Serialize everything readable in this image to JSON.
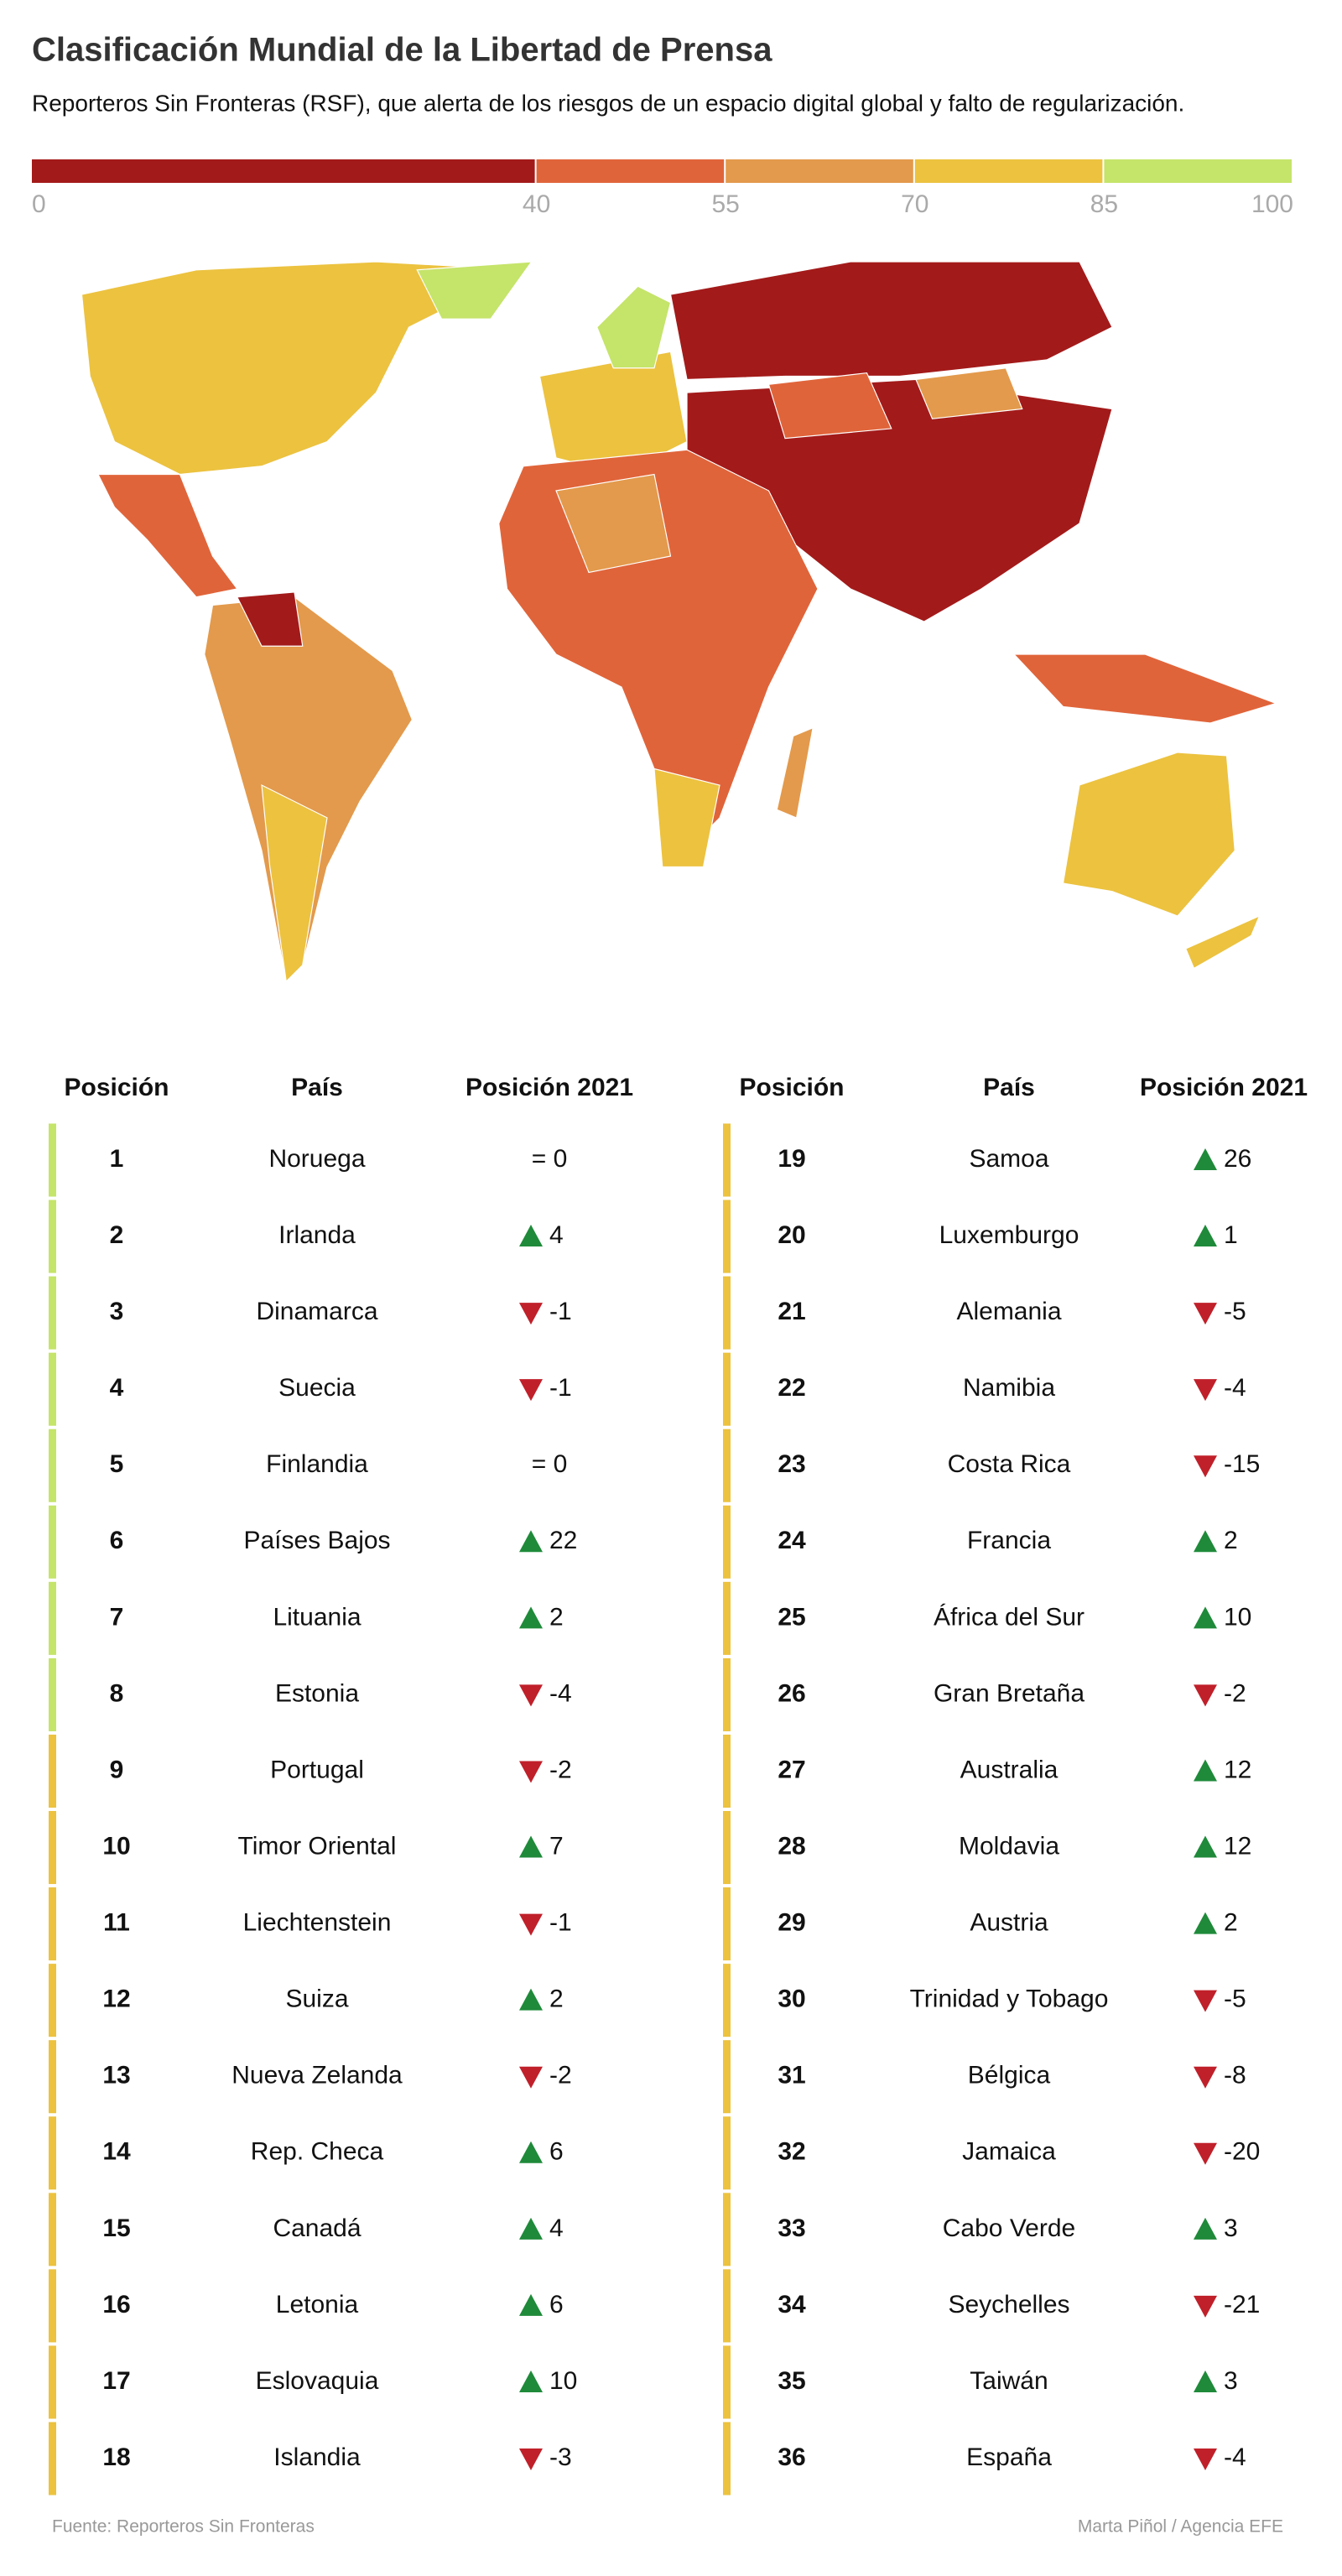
{
  "header": {
    "title": "Clasificación Mundial de la Libertad de Prensa",
    "subtitle": "Reporteros Sin Fronteras (RSF), que alerta de los riesgos de un espacio digital global y falto de regularización."
  },
  "legend": {
    "ticks": [
      0,
      40,
      55,
      70,
      85,
      100
    ],
    "colors": [
      "#a31a1a",
      "#e0643a",
      "#e39a4c",
      "#ecc23f",
      "#c5e46a"
    ]
  },
  "table": {
    "headers": [
      "Posición",
      "País",
      "Posición 2021"
    ],
    "up_color": "#1f8a3a",
    "down_color": "#c0202a",
    "rows": [
      {
        "position": 1,
        "country": "Noruega",
        "change": "= 0",
        "trend": "same",
        "color": "#c5e46a"
      },
      {
        "position": 2,
        "country": "Irlanda",
        "change": 4,
        "trend": "up",
        "color": "#c5e46a"
      },
      {
        "position": 3,
        "country": "Dinamarca",
        "change": -1,
        "trend": "down",
        "color": "#c5e46a"
      },
      {
        "position": 4,
        "country": "Suecia",
        "change": -1,
        "trend": "down",
        "color": "#c5e46a"
      },
      {
        "position": 5,
        "country": "Finlandia",
        "change": "= 0",
        "trend": "same",
        "color": "#c5e46a"
      },
      {
        "position": 6,
        "country": "Países Bajos",
        "change": 22,
        "trend": "up",
        "color": "#c5e46a"
      },
      {
        "position": 7,
        "country": "Lituania",
        "change": 2,
        "trend": "up",
        "color": "#c5e46a"
      },
      {
        "position": 8,
        "country": "Estonia",
        "change": -4,
        "trend": "down",
        "color": "#c5e46a"
      },
      {
        "position": 9,
        "country": "Portugal",
        "change": -2,
        "trend": "down",
        "color": "#ecc23f"
      },
      {
        "position": 10,
        "country": "Timor Oriental",
        "change": 7,
        "trend": "up",
        "color": "#ecc23f"
      },
      {
        "position": 11,
        "country": "Liechtenstein",
        "change": -1,
        "trend": "down",
        "color": "#ecc23f"
      },
      {
        "position": 12,
        "country": "Suiza",
        "change": 2,
        "trend": "up",
        "color": "#ecc23f"
      },
      {
        "position": 13,
        "country": "Nueva Zelanda",
        "change": -2,
        "trend": "down",
        "color": "#ecc23f"
      },
      {
        "position": 14,
        "country": "Rep. Checa",
        "change": 6,
        "trend": "up",
        "color": "#ecc23f"
      },
      {
        "position": 15,
        "country": "Canadá",
        "change": 4,
        "trend": "up",
        "color": "#ecc23f"
      },
      {
        "position": 16,
        "country": "Letonia",
        "change": 6,
        "trend": "up",
        "color": "#ecc23f"
      },
      {
        "position": 17,
        "country": "Eslovaquia",
        "change": 10,
        "trend": "up",
        "color": "#ecc23f"
      },
      {
        "position": 18,
        "country": "Islandia",
        "change": -3,
        "trend": "down",
        "color": "#ecc23f"
      },
      {
        "position": 19,
        "country": "Samoa",
        "change": 26,
        "trend": "up",
        "color": "#ecc23f"
      },
      {
        "position": 20,
        "country": "Luxemburgo",
        "change": 1,
        "trend": "up",
        "color": "#ecc23f"
      },
      {
        "position": 21,
        "country": "Alemania",
        "change": -5,
        "trend": "down",
        "color": "#ecc23f"
      },
      {
        "position": 22,
        "country": "Namibia",
        "change": -4,
        "trend": "down",
        "color": "#ecc23f"
      },
      {
        "position": 23,
        "country": "Costa Rica",
        "change": -15,
        "trend": "down",
        "color": "#ecc23f"
      },
      {
        "position": 24,
        "country": "Francia",
        "change": 2,
        "trend": "up",
        "color": "#ecc23f"
      },
      {
        "position": 25,
        "country": "África del Sur",
        "change": 10,
        "trend": "up",
        "color": "#ecc23f"
      },
      {
        "position": 26,
        "country": "Gran Bretaña",
        "change": -2,
        "trend": "down",
        "color": "#ecc23f"
      },
      {
        "position": 27,
        "country": "Australia",
        "change": 12,
        "trend": "up",
        "color": "#ecc23f"
      },
      {
        "position": 28,
        "country": "Moldavia",
        "change": 12,
        "trend": "up",
        "color": "#ecc23f"
      },
      {
        "position": 29,
        "country": "Austria",
        "change": 2,
        "trend": "up",
        "color": "#ecc23f"
      },
      {
        "position": 30,
        "country": "Trinidad y Tobago",
        "change": -5,
        "trend": "down",
        "color": "#ecc23f"
      },
      {
        "position": 31,
        "country": "Bélgica",
        "change": -8,
        "trend": "down",
        "color": "#ecc23f"
      },
      {
        "position": 32,
        "country": "Jamaica",
        "change": -20,
        "trend": "down",
        "color": "#ecc23f"
      },
      {
        "position": 33,
        "country": "Cabo Verde",
        "change": 3,
        "trend": "up",
        "color": "#ecc23f"
      },
      {
        "position": 34,
        "country": "Seychelles",
        "change": -21,
        "trend": "down",
        "color": "#ecc23f"
      },
      {
        "position": 35,
        "country": "Taiwán",
        "change": 3,
        "trend": "up",
        "color": "#ecc23f"
      },
      {
        "position": 36,
        "country": "España",
        "change": -4,
        "trend": "down",
        "color": "#ecc23f"
      }
    ]
  },
  "footer": {
    "source": "Fuente: Reporteros Sin Fronteras",
    "credit": "Marta Piñol / Agencia EFE"
  }
}
